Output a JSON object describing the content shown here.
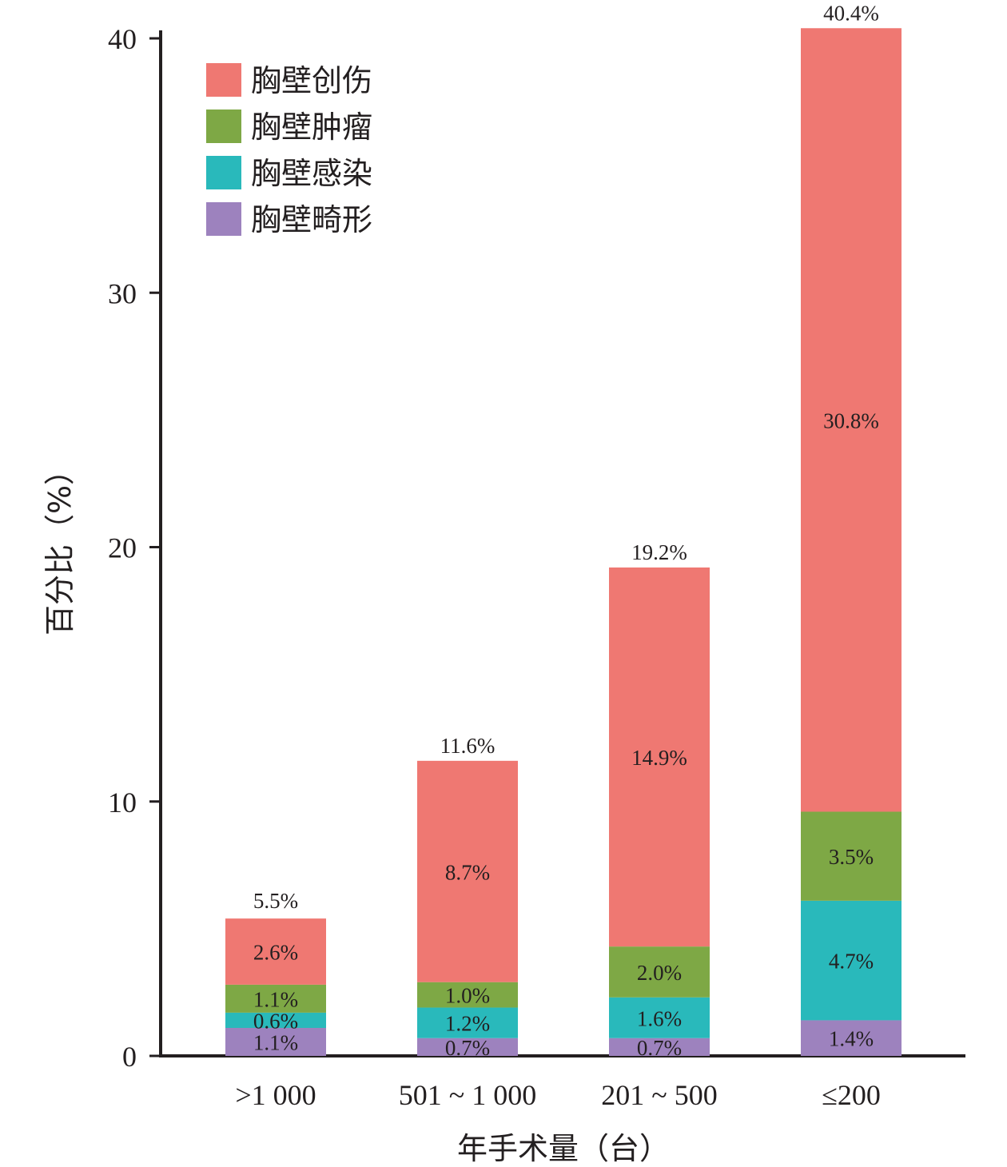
{
  "chart_data": {
    "type": "bar",
    "stacked": true,
    "title": "",
    "xlabel": "年手术量（台）",
    "ylabel": "百分比（%）",
    "ylim": [
      0,
      40
    ],
    "yticks": [
      "0",
      "10",
      "20",
      "30",
      "40"
    ],
    "grid": false,
    "legend_position": "top-left",
    "categories": [
      ">1 000",
      "501 ~ 1 000",
      "201 ~ 500",
      "≤200"
    ],
    "series": [
      {
        "name": "胸壁畸形",
        "color": "#9d82be",
        "values": [
          1.1,
          0.7,
          0.7,
          1.4
        ],
        "labels": [
          "1.1%",
          "0.7%",
          "0.7%",
          "1.4%"
        ]
      },
      {
        "name": "胸壁感染",
        "color": "#29b9bb",
        "values": [
          0.6,
          1.2,
          1.6,
          4.7
        ],
        "labels": [
          "0.6%",
          "1.2%",
          "1.6%",
          "4.7%"
        ]
      },
      {
        "name": "胸壁肿瘤",
        "color": "#7ea845",
        "values": [
          1.1,
          1.0,
          2.0,
          3.5
        ],
        "labels": [
          "1.1%",
          "1.0%",
          "2.0%",
          "3.5%"
        ]
      },
      {
        "name": "胸壁创伤",
        "color": "#ef7872",
        "values": [
          2.6,
          8.7,
          14.9,
          30.8
        ],
        "labels": [
          "2.6%",
          "8.7%",
          "14.9%",
          "30.8%"
        ]
      }
    ],
    "totals": [
      5.5,
      11.6,
      19.2,
      40.4
    ],
    "total_labels": [
      "5.5%",
      "11.6%",
      "19.2%",
      "40.4%"
    ],
    "legend_order": [
      "胸壁创伤",
      "胸壁肿瘤",
      "胸壁感染",
      "胸壁畸形"
    ]
  }
}
